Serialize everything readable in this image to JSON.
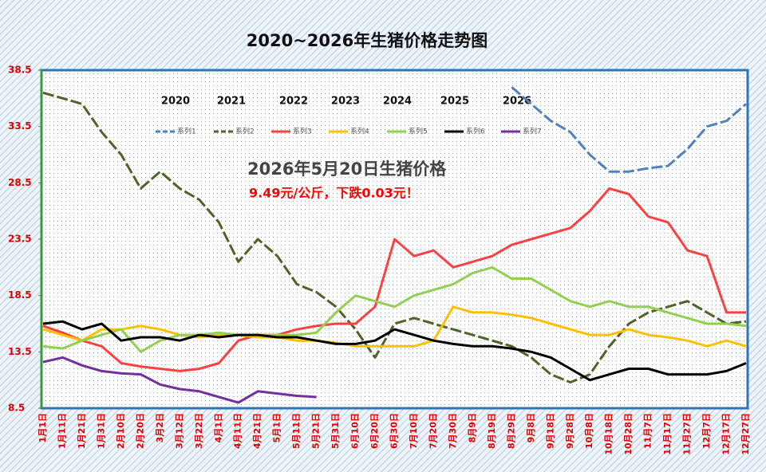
{
  "chart_data": {
    "type": "line",
    "title": "2020~2026年生猪价格走势图",
    "annotations": [
      "2026年5月20日生猪价格",
      "9.49元/公斤，下跌0.03元！"
    ],
    "year_labels": [
      "2020",
      "2021",
      "2022",
      "2023",
      "2024",
      "2025",
      "2026"
    ],
    "categories": [
      "1月1日",
      "1月11日",
      "1月21日",
      "1月31日",
      "2月10日",
      "2月20日",
      "3月2日",
      "3月12日",
      "3月22日",
      "4月1日",
      "4月11日",
      "4月21日",
      "5月1日",
      "5月11日",
      "5月21日",
      "5月31日",
      "6月10日",
      "6月20日",
      "6月30日",
      "7月10日",
      "7月20日",
      "7月30日",
      "8月9日",
      "8月19日",
      "8月29日",
      "9月8日",
      "9月18日",
      "9月28日",
      "10月8日",
      "10月18日",
      "10月28日",
      "11月7日",
      "11月17日",
      "11月27日",
      "12月7日",
      "12月17日",
      "12月27日"
    ],
    "ylim": [
      8.5,
      38.5
    ],
    "yticks": [
      8.5,
      13.5,
      18.5,
      23.5,
      28.5,
      33.5,
      38.5
    ],
    "series": [
      {
        "name": "系列1",
        "color": "#4f81bd",
        "dash": true,
        "values": [
          null,
          null,
          null,
          null,
          null,
          null,
          null,
          null,
          null,
          null,
          null,
          null,
          null,
          null,
          null,
          null,
          null,
          null,
          null,
          null,
          null,
          null,
          null,
          null,
          37.0,
          35.5,
          34.0,
          33.0,
          31.0,
          29.5,
          29.5,
          29.8,
          30.0,
          31.5,
          33.5,
          34.0,
          35.5
        ]
      },
      {
        "name": "系列2",
        "color": "#4f6228",
        "dash": true,
        "values": [
          36.5,
          36.0,
          35.5,
          33.0,
          31.0,
          28.0,
          29.5,
          28.0,
          27.0,
          25.0,
          21.5,
          23.5,
          22.0,
          19.5,
          18.8,
          17.5,
          15.5,
          13.0,
          16.0,
          16.5,
          16.0,
          15.5,
          15.0,
          14.5,
          14.0,
          13.0,
          11.5,
          10.8,
          11.5,
          14.0,
          16.0,
          17.0,
          17.5,
          18.0,
          17.0,
          16.0,
          16.2
        ]
      },
      {
        "name": "系列3",
        "color": "#ff4040",
        "dash": false,
        "values": [
          15.8,
          15.2,
          14.5,
          14.0,
          12.5,
          12.2,
          12.0,
          11.8,
          12.0,
          12.5,
          14.5,
          15.0,
          15.0,
          15.5,
          15.8,
          16.0,
          16.0,
          17.5,
          23.5,
          22.0,
          22.5,
          21.0,
          21.5,
          22.0,
          23.0,
          23.5,
          24.0,
          24.5,
          26.0,
          28.0,
          27.5,
          25.5,
          25.0,
          22.5,
          22.0,
          17.0,
          17.0
        ]
      },
      {
        "name": "系列4",
        "color": "#ffc000",
        "dash": false,
        "values": [
          15.5,
          15.0,
          14.5,
          15.5,
          15.5,
          15.8,
          15.5,
          15.0,
          14.8,
          15.0,
          15.0,
          14.8,
          14.8,
          14.5,
          14.5,
          14.3,
          14.0,
          14.0,
          14.0,
          14.0,
          14.5,
          17.5,
          17.0,
          17.0,
          16.8,
          16.5,
          16.0,
          15.5,
          15.0,
          15.0,
          15.5,
          15.0,
          14.8,
          14.5,
          14.0,
          14.5,
          14.0
        ]
      },
      {
        "name": "系列5",
        "color": "#92d050",
        "dash": false,
        "values": [
          14.0,
          13.8,
          14.5,
          15.0,
          15.5,
          13.5,
          14.5,
          15.0,
          15.0,
          15.2,
          15.0,
          15.0,
          15.0,
          15.0,
          15.2,
          17.0,
          18.5,
          18.0,
          17.5,
          18.5,
          19.0,
          19.5,
          20.5,
          21.0,
          20.0,
          20.0,
          19.0,
          18.0,
          17.5,
          18.0,
          17.5,
          17.5,
          17.0,
          16.5,
          16.0,
          16.0,
          15.8
        ]
      },
      {
        "name": "系列6",
        "color": "#000000",
        "dash": false,
        "values": [
          16.0,
          16.2,
          15.5,
          16.0,
          14.5,
          14.8,
          14.8,
          14.5,
          15.0,
          14.8,
          15.0,
          15.0,
          14.8,
          14.8,
          14.5,
          14.2,
          14.2,
          14.5,
          15.5,
          15.0,
          14.5,
          14.2,
          14.0,
          14.0,
          13.8,
          13.5,
          13.0,
          12.0,
          11.0,
          11.5,
          12.0,
          12.0,
          11.5,
          11.5,
          11.5,
          11.8,
          12.5
        ]
      },
      {
        "name": "系列7",
        "color": "#7030a0",
        "dash": false,
        "values": [
          12.6,
          13.0,
          12.3,
          11.8,
          11.6,
          11.5,
          10.6,
          10.2,
          10.0,
          9.5,
          9.0,
          10.0,
          9.8,
          9.6,
          9.49,
          null,
          null,
          null,
          null,
          null,
          null,
          null,
          null,
          null,
          null,
          null,
          null,
          null,
          null,
          null,
          null,
          null,
          null,
          null,
          null,
          null,
          null
        ]
      }
    ]
  }
}
